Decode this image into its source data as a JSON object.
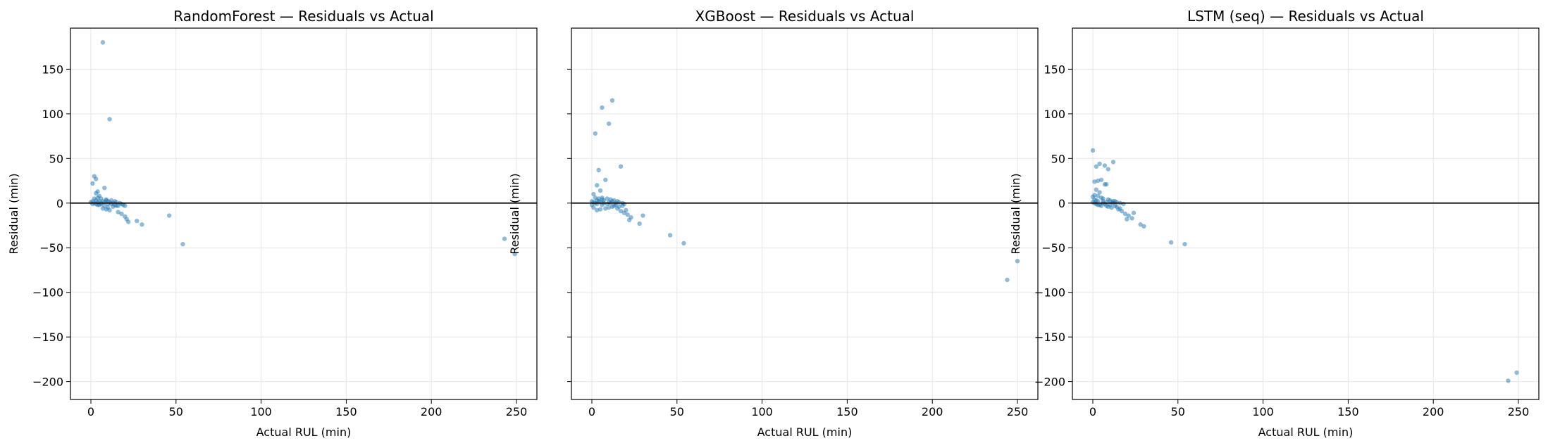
{
  "style": {
    "point_color": "#1f77b4",
    "point_opacity": 0.5,
    "zero_line_color": "#000000",
    "grid_color": "#e6e6e6"
  },
  "chart_data": [
    {
      "type": "scatter",
      "title": "RandomForest — Residuals vs Actual",
      "xlabel": "Actual RUL (min)",
      "ylabel": "Residual (min)",
      "xlim": [
        -12,
        262
      ],
      "ylim": [
        -220,
        196
      ],
      "xticks": [
        0,
        50,
        100,
        150,
        200,
        250
      ],
      "yticks": [
        150,
        100,
        50,
        0,
        -50,
        -100,
        -150,
        -200
      ],
      "grid": true,
      "zero_line": true,
      "shared_y_labels": true,
      "points": [
        [
          7,
          180
        ],
        [
          11,
          94
        ],
        [
          2,
          30
        ],
        [
          3,
          27
        ],
        [
          1,
          22
        ],
        [
          8,
          17
        ],
        [
          4,
          13
        ],
        [
          3,
          11
        ],
        [
          5,
          8
        ],
        [
          4,
          6
        ],
        [
          6,
          5
        ],
        [
          9,
          4
        ],
        [
          12,
          3
        ],
        [
          14,
          2
        ],
        [
          15,
          1
        ],
        [
          17,
          0
        ],
        [
          18,
          -1
        ],
        [
          16,
          -3
        ],
        [
          13,
          -4
        ],
        [
          10,
          -5
        ],
        [
          7,
          -6
        ],
        [
          11,
          -8
        ],
        [
          9,
          -7
        ],
        [
          19,
          -2
        ],
        [
          20,
          -3
        ],
        [
          2,
          5
        ],
        [
          3,
          3
        ],
        [
          1,
          2
        ],
        [
          0,
          1
        ],
        [
          2,
          0
        ],
        [
          1,
          -1
        ],
        [
          4,
          -2
        ],
        [
          5,
          2
        ],
        [
          6,
          -1
        ],
        [
          8,
          1
        ],
        [
          9,
          3
        ],
        [
          10,
          2
        ],
        [
          11,
          1
        ],
        [
          12,
          -1
        ],
        [
          13,
          0
        ],
        [
          14,
          -2
        ],
        [
          15,
          -3
        ],
        [
          16,
          -10
        ],
        [
          18,
          -12
        ],
        [
          20,
          -15
        ],
        [
          21,
          -18
        ],
        [
          22,
          -21
        ],
        [
          27,
          -20
        ],
        [
          30,
          -24
        ],
        [
          46,
          -14
        ],
        [
          54,
          -46
        ],
        [
          243,
          -40
        ],
        [
          249,
          -57
        ],
        [
          5,
          -2
        ],
        [
          6,
          0
        ],
        [
          7,
          2
        ],
        [
          8,
          -3
        ],
        [
          3,
          -1
        ],
        [
          4,
          1
        ],
        [
          10,
          -1
        ]
      ]
    },
    {
      "type": "scatter",
      "title": "XGBoost — Residuals vs Actual",
      "xlabel": "Actual RUL (min)",
      "ylabel": "Residual (min)",
      "xlim": [
        -12,
        262
      ],
      "ylim": [
        -220,
        196
      ],
      "xticks": [
        0,
        50,
        100,
        150,
        200,
        250
      ],
      "yticks": [
        150,
        100,
        50,
        0,
        -50,
        -100,
        -150,
        -200
      ],
      "grid": true,
      "zero_line": true,
      "shared_y_labels": false,
      "points": [
        [
          12,
          115
        ],
        [
          6,
          107
        ],
        [
          10,
          89
        ],
        [
          2,
          78
        ],
        [
          17,
          41
        ],
        [
          4,
          37
        ],
        [
          8,
          26
        ],
        [
          3,
          20
        ],
        [
          5,
          14
        ],
        [
          1,
          10
        ],
        [
          2,
          6
        ],
        [
          4,
          5
        ],
        [
          6,
          4
        ],
        [
          7,
          3
        ],
        [
          9,
          5
        ],
        [
          11,
          4
        ],
        [
          13,
          3
        ],
        [
          15,
          2
        ],
        [
          16,
          1
        ],
        [
          18,
          0
        ],
        [
          19,
          -1
        ],
        [
          14,
          -2
        ],
        [
          12,
          -4
        ],
        [
          10,
          -5
        ],
        [
          8,
          -6
        ],
        [
          5,
          -7
        ],
        [
          3,
          -8
        ],
        [
          1,
          -5
        ],
        [
          0,
          -2
        ],
        [
          0,
          2
        ],
        [
          1,
          1
        ],
        [
          2,
          0
        ],
        [
          3,
          -1
        ],
        [
          5,
          1
        ],
        [
          6,
          -2
        ],
        [
          9,
          -1
        ],
        [
          11,
          0
        ],
        [
          13,
          -3
        ],
        [
          15,
          -6
        ],
        [
          17,
          -9
        ],
        [
          19,
          -11
        ],
        [
          21,
          -13
        ],
        [
          23,
          -16
        ],
        [
          22,
          -19
        ],
        [
          28,
          -23
        ],
        [
          30,
          -14
        ],
        [
          46,
          -36
        ],
        [
          54,
          -45
        ],
        [
          244,
          -86
        ],
        [
          250,
          -65
        ],
        [
          4,
          2
        ],
        [
          7,
          0
        ],
        [
          10,
          1
        ],
        [
          12,
          2
        ],
        [
          14,
          0
        ],
        [
          16,
          -4
        ],
        [
          20,
          -8
        ],
        [
          18,
          -3
        ],
        [
          6,
          6
        ],
        [
          3,
          3
        ]
      ]
    },
    {
      "type": "scatter",
      "title": "LSTM (seq) — Residuals vs Actual",
      "xlabel": "Actual RUL (min)",
      "ylabel": "Residual (min)",
      "xlim": [
        -12,
        262
      ],
      "ylim": [
        -220,
        196
      ],
      "xticks": [
        0,
        50,
        100,
        150,
        200,
        250
      ],
      "yticks": [
        150,
        100,
        50,
        0,
        -50,
        -100,
        -150,
        -200
      ],
      "grid": true,
      "zero_line": true,
      "shared_y_labels": true,
      "points": [
        [
          0,
          59
        ],
        [
          12,
          46
        ],
        [
          4,
          44
        ],
        [
          7,
          42
        ],
        [
          2,
          41
        ],
        [
          9,
          38
        ],
        [
          5,
          26
        ],
        [
          1,
          24
        ],
        [
          3,
          25
        ],
        [
          7,
          21
        ],
        [
          8,
          21
        ],
        [
          2,
          15
        ],
        [
          4,
          12
        ],
        [
          1,
          9
        ],
        [
          3,
          8
        ],
        [
          0,
          7
        ],
        [
          5,
          6
        ],
        [
          6,
          5
        ],
        [
          9,
          4
        ],
        [
          10,
          3
        ],
        [
          12,
          2
        ],
        [
          14,
          1
        ],
        [
          16,
          0
        ],
        [
          18,
          -1
        ],
        [
          13,
          -3
        ],
        [
          11,
          -5
        ],
        [
          15,
          -7
        ],
        [
          17,
          -9
        ],
        [
          19,
          -12
        ],
        [
          21,
          -14
        ],
        [
          20,
          -18
        ],
        [
          23,
          -17
        ],
        [
          24,
          -11
        ],
        [
          28,
          -24
        ],
        [
          30,
          -26
        ],
        [
          46,
          -44
        ],
        [
          54,
          -46
        ],
        [
          244,
          -199
        ],
        [
          249,
          -190
        ],
        [
          0,
          1
        ],
        [
          1,
          0
        ],
        [
          2,
          -1
        ],
        [
          3,
          2
        ],
        [
          4,
          -2
        ],
        [
          6,
          0
        ],
        [
          7,
          -1
        ],
        [
          8,
          1
        ],
        [
          10,
          -2
        ],
        [
          12,
          0
        ],
        [
          14,
          -4
        ],
        [
          16,
          -6
        ],
        [
          11,
          1
        ],
        [
          13,
          2
        ],
        [
          2,
          3
        ],
        [
          5,
          -3
        ],
        [
          9,
          -4
        ],
        [
          1,
          4
        ],
        [
          3,
          -2
        ],
        [
          6,
          2
        ],
        [
          8,
          -3
        ]
      ]
    }
  ]
}
